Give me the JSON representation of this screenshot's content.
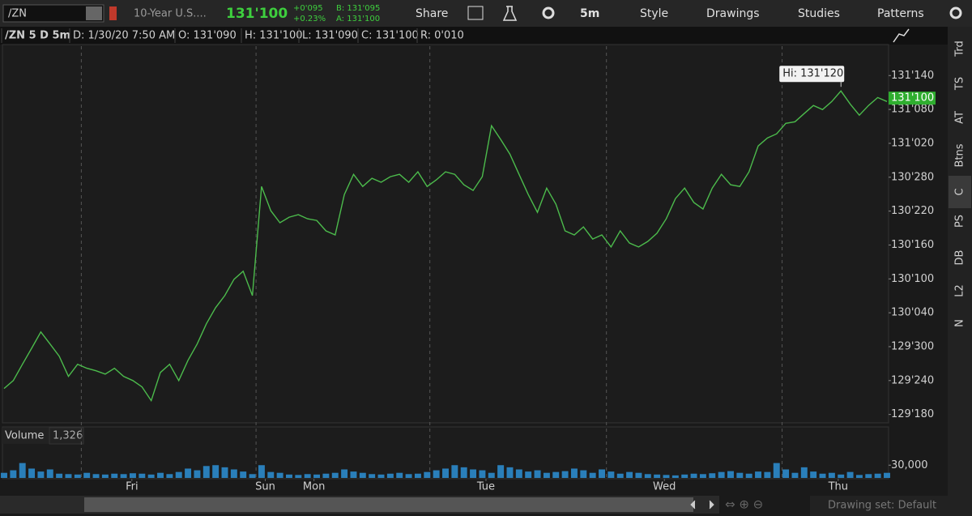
{
  "toolbar": {
    "symbol": "/ZN",
    "description": "10-Year U.S....",
    "last": "131'100",
    "net_change": "+0'095",
    "percent_change": "+0.23%",
    "bid": "B: 131'095",
    "ask": "A: 131'100",
    "buttons": [
      "Share",
      "5m",
      "Style",
      "Drawings",
      "Studies",
      "Patterns"
    ]
  },
  "info_bar": [
    "/ZN 5 D 5m",
    "D: 1/30/20 7:50 AM",
    "O: 131'090",
    "H: 131'100",
    "L: 131'090",
    "C: 131'100",
    "R: 0'010"
  ],
  "sidebar": [
    "Trd",
    "TS",
    "AT",
    "Btns",
    "C",
    "PS",
    "DB",
    "L2",
    "N"
  ],
  "volume_header": {
    "title": "Volume",
    "value": "1,326"
  },
  "status": "Drawing set: Default",
  "chart_data": [
    {
      "type": "line",
      "color": "#4cbb4c",
      "values": [
        129.706,
        129.75,
        129.84,
        129.929,
        130.019,
        129.952,
        129.885,
        129.773,
        129.84,
        129.818,
        129.804,
        129.786,
        129.818,
        129.773,
        129.75,
        129.715,
        129.639,
        129.795,
        129.84,
        129.75,
        129.862,
        129.952,
        130.064,
        130.153,
        130.22,
        130.31,
        130.355,
        130.22,
        130.824,
        130.69,
        130.623,
        130.654,
        130.668,
        130.645,
        130.636,
        130.578,
        130.556,
        130.779,
        130.891,
        130.824,
        130.869,
        130.847,
        130.878,
        130.891,
        130.847,
        130.905,
        130.824,
        130.86,
        130.905,
        130.891,
        130.833,
        130.802,
        130.878,
        131.16,
        131.084,
        131.003,
        130.891,
        130.779,
        130.681,
        130.815,
        130.726,
        130.578,
        130.556,
        130.6,
        130.533,
        130.556,
        130.489,
        130.578,
        130.511,
        130.489,
        130.52,
        130.565,
        130.645,
        130.757,
        130.815,
        130.735,
        130.699,
        130.815,
        130.891,
        130.833,
        130.824,
        130.905,
        131.048,
        131.092,
        131.115,
        131.173,
        131.182,
        131.227,
        131.272,
        131.249,
        131.294,
        131.352,
        131.28,
        131.218,
        131.272,
        131.316,
        131.294
      ],
      "xlim": [
        0,
        96
      ],
      "xgrid": [
        8.4,
        27.4,
        46.3,
        65.5,
        84.6
      ],
      "xticks": [
        {
          "value": 13.9,
          "label": "Fri"
        },
        {
          "value": 28.4,
          "label": "Sun"
        },
        {
          "value": 33.7,
          "label": "Mon"
        },
        {
          "value": 52.4,
          "label": "Tue"
        },
        {
          "value": 71.8,
          "label": "Wed"
        },
        {
          "value": 90.7,
          "label": "Thu"
        }
      ],
      "ylim": [
        129.525,
        131.6
      ],
      "yticks": [
        {
          "value": 129.5625,
          "label": "129'180"
        },
        {
          "value": 129.75,
          "label": "129'240"
        },
        {
          "value": 129.9375,
          "label": "129'300"
        },
        {
          "value": 130.125,
          "label": "130'040"
        },
        {
          "value": 130.3125,
          "label": "130'100"
        },
        {
          "value": 130.5,
          "label": "130'160"
        },
        {
          "value": 130.6875,
          "label": "130'220"
        },
        {
          "value": 130.875,
          "label": "130'280"
        },
        {
          "value": 131.0625,
          "label": "131'020"
        },
        {
          "value": 131.25,
          "label": "131'080"
        },
        {
          "value": 131.4375,
          "label": "131'140"
        }
      ],
      "last_price": {
        "value": 131.3125,
        "label": "131'100"
      },
      "annotation": {
        "x": 91,
        "value": 131.375,
        "label": "Hi: 131'120"
      }
    },
    {
      "type": "bar",
      "color": "#2a7fba",
      "values": [
        12000,
        18000,
        35000,
        22000,
        15000,
        20000,
        10000,
        9000,
        8000,
        12000,
        9000,
        8000,
        10000,
        9000,
        11000,
        10000,
        8000,
        12000,
        9000,
        14000,
        22000,
        18000,
        28000,
        30000,
        25000,
        20000,
        15000,
        9000,
        30000,
        14000,
        12000,
        8000,
        7000,
        9000,
        8000,
        10000,
        12000,
        20000,
        15000,
        12000,
        9000,
        8000,
        10000,
        12000,
        9000,
        10000,
        14000,
        18000,
        22000,
        30000,
        25000,
        20000,
        18000,
        12000,
        30000,
        25000,
        20000,
        15000,
        18000,
        12000,
        14000,
        16000,
        22000,
        18000,
        12000,
        20000,
        15000,
        10000,
        14000,
        12000,
        9000,
        8000,
        7000,
        6000,
        8000,
        10000,
        9000,
        11000,
        14000,
        16000,
        12000,
        10000,
        15000,
        14000,
        35000,
        20000,
        12000,
        25000,
        15000,
        10000,
        12000,
        8000,
        14000,
        7000,
        9000,
        10000,
        12000
      ],
      "xlim": [
        0,
        96
      ],
      "ylim": [
        0,
        80000
      ],
      "yticks": [
        {
          "value": 30000,
          "label": "30,000"
        }
      ]
    }
  ]
}
